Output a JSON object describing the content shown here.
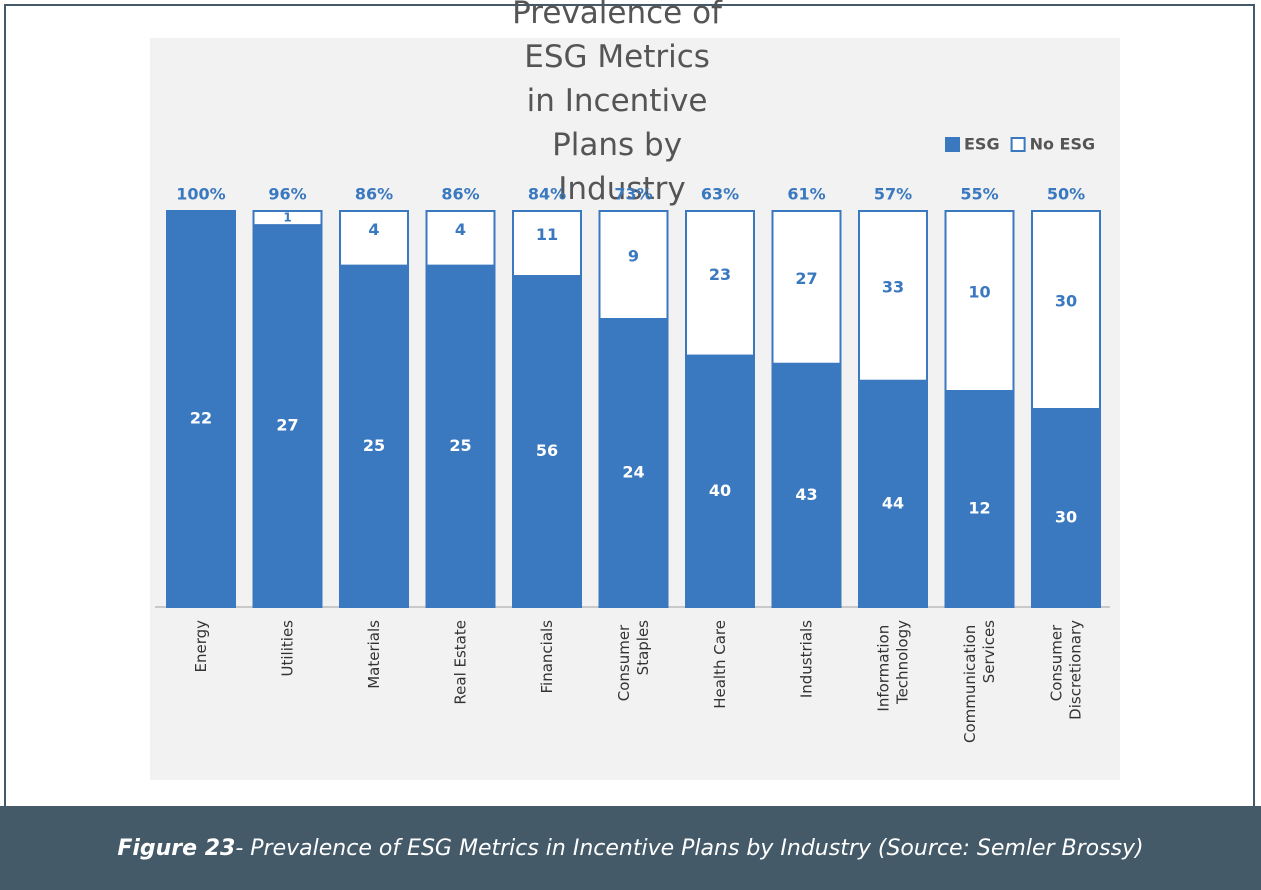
{
  "chart_data": {
    "type": "stacked_percent_bar",
    "title": "Prevalence of ESG Metrics in Incentive Plans by Industry",
    "categories": [
      "Energy",
      "Utilities",
      "Materials",
      "Real Estate",
      "Financials",
      "Consumer Staples",
      "Health Care",
      "Industrials",
      "Information Technology",
      "Communication Services",
      "Consumer Discretionary"
    ],
    "series": [
      {
        "name": "ESG",
        "color": "#3a78bf",
        "values": [
          22,
          27,
          25,
          25,
          56,
          24,
          40,
          43,
          44,
          12,
          30
        ]
      },
      {
        "name": "No ESG",
        "color": "#ffffff",
        "values": [
          0,
          1,
          4,
          4,
          11,
          9,
          23,
          27,
          33,
          10,
          30
        ]
      }
    ],
    "percentages": [
      100,
      96,
      86,
      86,
      84,
      73,
      63,
      61,
      57,
      55,
      50
    ],
    "percentage_labels": [
      "100%",
      "96%",
      "86%",
      "86%",
      "84%",
      "73%",
      "63%",
      "61%",
      "57%",
      "55%",
      "50%"
    ],
    "legend": "top-right"
  },
  "caption": {
    "label": "Figure 23",
    "text": " - Prevalence of ESG Metrics in Incentive Plans by Industry (Source: Semler Brossy)"
  }
}
